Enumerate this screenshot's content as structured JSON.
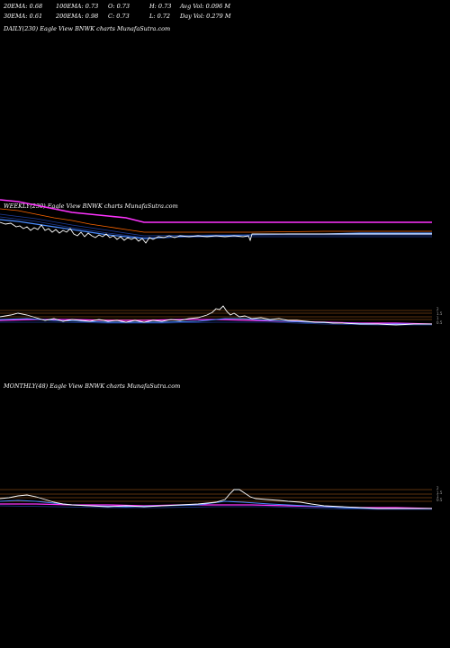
{
  "header": {
    "row1": {
      "ema20": "20EMA: 0.68",
      "ema100": "100EMA: 0.73",
      "open": "O: 0.73",
      "high": "H: 0.73",
      "avgvol": "Avg Vol: 0.096  M"
    },
    "row2": {
      "ema30": "30EMA: 0.61",
      "ema200": "200EMA: 0.98",
      "close": "C: 0.73",
      "low": "L: 0.72",
      "dayvol": "Day Vol: 0.279  M"
    }
  },
  "panels": {
    "daily_label": "DAILY(230) Eagle   View  BNWK charts MunafaSutra.com",
    "weekly_label": "WEEKLY(230) Eagle   View  BNWK charts MunafaSutra.com",
    "monthly_label": "MONTHLY(48) Eagle   View  BNWK charts MunafaSutra.com"
  },
  "colors": {
    "price": "#ffffff",
    "ema_short": "#4a8cff",
    "ema_long": "#ff33ff",
    "ema_mid": "#ff6600",
    "guide": "#b5651d",
    "band": "#1e3c9a"
  },
  "chart_data": [
    {
      "type": "line",
      "name": "daily",
      "series": [
        {
          "values": [
            0.96,
            0.95,
            0.94,
            0.93,
            0.92,
            0.9,
            0.89,
            0.88,
            0.87,
            0.86,
            0.85,
            0.84,
            0.83,
            0.83,
            0.82,
            0.82,
            0.81,
            0.81,
            0.8,
            0.8
          ]
        },
        {
          "values": [
            1.0,
            1.0,
            0.99,
            0.99,
            0.98,
            0.98,
            0.98,
            0.98,
            0.98,
            0.98,
            0.98,
            0.98,
            0.98,
            0.98,
            0.98,
            0.98,
            0.98,
            0.98,
            0.98,
            0.98
          ]
        },
        {
          "values": [
            0.8,
            0.78,
            0.8,
            0.77,
            0.75,
            0.76,
            0.72,
            0.74,
            0.7,
            0.71,
            0.73,
            0.74,
            0.72,
            0.73,
            0.74,
            0.73,
            0.73,
            0.74,
            0.73,
            0.73
          ]
        }
      ]
    },
    {
      "type": "line",
      "name": "weekly",
      "series": [
        {
          "values": [
            2.1,
            2.3,
            1.9,
            1.6,
            1.7,
            1.5,
            1.6,
            1.4,
            1.5,
            1.3,
            1.4,
            1.5,
            1.6,
            2.6,
            4.2,
            2.5,
            1.9,
            1.8,
            1.6,
            1.5,
            1.3,
            1.1,
            1.0,
            1.0,
            0.9,
            0.9,
            0.85,
            0.8,
            0.78,
            0.75,
            0.73,
            0.73
          ]
        }
      ],
      "yticks": [
        "2",
        "1.5",
        "1",
        "0.5"
      ]
    },
    {
      "type": "line",
      "name": "monthly",
      "series": [
        {
          "values": [
            1.6,
            1.9,
            2.3,
            1.8,
            1.4,
            1.3,
            1.2,
            1.1,
            1.2,
            1.3,
            1.4,
            1.6,
            4.5,
            4.0,
            2.2,
            1.9,
            1.8,
            1.6,
            1.3,
            1.1,
            1.0,
            0.9,
            0.85,
            0.8,
            0.75,
            0.73
          ]
        }
      ],
      "yticks": [
        "2",
        "1.5",
        "1",
        "0.5"
      ]
    }
  ]
}
